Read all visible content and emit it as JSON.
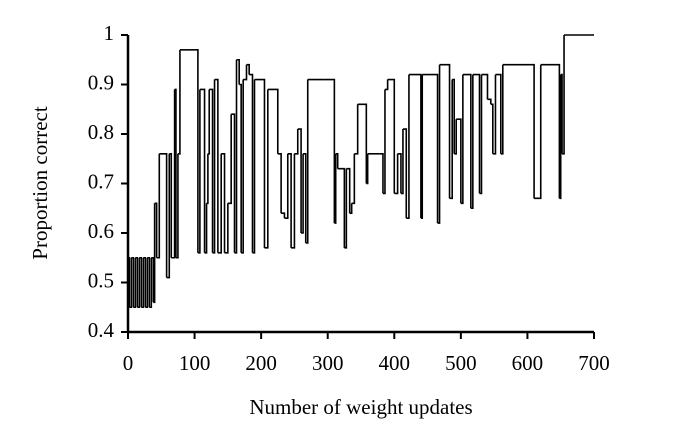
{
  "chart_data": {
    "type": "line",
    "drawstyle": "steps-post",
    "color": "#000000",
    "xlabel": "Number of weight updates",
    "ylabel": "Proportion correct",
    "xlim": [
      0,
      700
    ],
    "ylim": [
      0.4,
      1
    ],
    "xticks": [
      0,
      100,
      200,
      300,
      400,
      500,
      600,
      700
    ],
    "yticks": [
      0.4,
      0.5,
      0.6,
      0.7,
      0.8,
      0.9,
      1
    ],
    "x": [
      0,
      2,
      5,
      8,
      11,
      14,
      17,
      20,
      23,
      26,
      29,
      32,
      35,
      38,
      40,
      43,
      47,
      58,
      62,
      65,
      70,
      72,
      75,
      78,
      100,
      105,
      108,
      115,
      118,
      120,
      122,
      127,
      130,
      135,
      140,
      145,
      150,
      155,
      160,
      163,
      167,
      170,
      173,
      178,
      182,
      187,
      190,
      205,
      210,
      225,
      230,
      235,
      240,
      245,
      250,
      255,
      260,
      263,
      267,
      270,
      295,
      310,
      312,
      315,
      325,
      328,
      333,
      336,
      340,
      345,
      358,
      360,
      378,
      383,
      386,
      390,
      400,
      405,
      410,
      413,
      418,
      422,
      440,
      442,
      465,
      468,
      483,
      487,
      490,
      493,
      500,
      503,
      515,
      518,
      528,
      531,
      540,
      545,
      548,
      552,
      560,
      563,
      610,
      620,
      648,
      650,
      652,
      655,
      700
    ],
    "values": [
      0.55,
      0.45,
      0.55,
      0.45,
      0.55,
      0.45,
      0.55,
      0.45,
      0.55,
      0.45,
      0.55,
      0.45,
      0.55,
      0.46,
      0.66,
      0.55,
      0.76,
      0.51,
      0.76,
      0.55,
      0.89,
      0.55,
      0.76,
      0.97,
      0.97,
      0.56,
      0.89,
      0.56,
      0.66,
      0.76,
      0.89,
      0.56,
      0.91,
      0.56,
      0.76,
      0.56,
      0.66,
      0.84,
      0.56,
      0.95,
      0.9,
      0.56,
      0.91,
      0.94,
      0.92,
      0.56,
      0.91,
      0.57,
      0.89,
      0.76,
      0.64,
      0.63,
      0.76,
      0.57,
      0.76,
      0.81,
      0.6,
      0.76,
      0.58,
      0.91,
      0.91,
      0.62,
      0.76,
      0.73,
      0.57,
      0.73,
      0.64,
      0.66,
      0.76,
      0.86,
      0.7,
      0.76,
      0.76,
      0.68,
      0.89,
      0.91,
      0.68,
      0.76,
      0.68,
      0.81,
      0.63,
      0.92,
      0.63,
      0.92,
      0.62,
      0.94,
      0.67,
      0.91,
      0.76,
      0.83,
      0.66,
      0.92,
      0.65,
      0.92,
      0.68,
      0.92,
      0.87,
      0.86,
      0.76,
      0.92,
      0.76,
      0.94,
      0.67,
      0.94,
      0.67,
      0.92,
      0.76,
      1,
      1
    ]
  }
}
